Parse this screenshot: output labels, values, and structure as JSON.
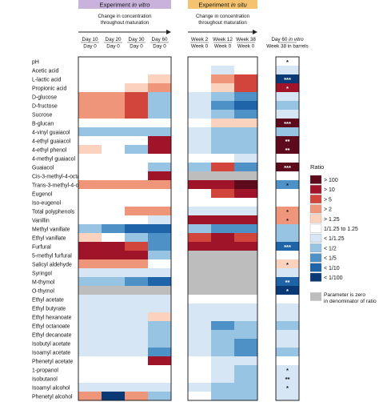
{
  "chart_data": {
    "type": "heatmap",
    "title": "",
    "colorbar_title": "Ratio",
    "legend_placement": "right",
    "panels": [
      {
        "header": {
          "prefix": "Experiment ",
          "italic": "in vitro",
          "color": "#c9b3dd"
        },
        "arrow_text": [
          {
            "parts": [
              {
                "t": "Change in concentration",
                "i": false
              }
            ]
          },
          {
            "parts": [
              {
                "t": "throughout maturation",
                "i": false
              }
            ]
          }
        ],
        "columns": [
          [
            "Day 10",
            "Day 0"
          ],
          [
            "Day 20",
            "Day 0"
          ],
          [
            "Day 30",
            "Day 0"
          ],
          [
            "Day 60",
            "Day 0"
          ]
        ]
      },
      {
        "header": {
          "prefix": "Experiment ",
          "italic": "in situ",
          "color": "#f5c36f"
        },
        "arrow_text": [
          {
            "parts": [
              {
                "t": "Change in concentration",
                "i": false
              }
            ]
          },
          {
            "parts": [
              {
                "t": "throughout maturation",
                "i": false
              }
            ]
          }
        ],
        "columns": [
          [
            "Week 2",
            "Week 0"
          ],
          [
            "Week 12",
            "Week 0"
          ],
          [
            "Week 38",
            "Week 0"
          ]
        ]
      },
      {
        "header": null,
        "arrow_text": [],
        "columns": [
          [
            {
              "parts": [
                {
                  "t": "Day 60 ",
                  "i": false
                },
                {
                  "t": "in vitro",
                  "i": true
                }
              ]
            },
            {
              "parts": [
                {
                  "t": "Week 38 in barrels",
                  "i": false
                }
              ]
            }
          ]
        ]
      }
    ],
    "rows": [
      "pH",
      "Acetic acid",
      "L-lactic acid",
      "Propionic acid",
      "D-glucose",
      "D-fructose",
      "Sucrose",
      "B-glucan",
      "4-vinyl guaiacol",
      "4-ethyl guaiacol",
      "4-ethyl phenol",
      "4-methyl guaiacol",
      "Guaiacol",
      "Cis-3-methyl-4-octanolide",
      "Trans-3-methyl-4-octanolide",
      "Eugenol",
      "Iso-eugenol",
      "Total polyphenols",
      "Vanillin",
      "Methyl vanillate",
      "Ethyl vanillate",
      "Furfural",
      "5-methyl furfural",
      "Salicyl aldehyde",
      "Syringol",
      "M-thymol",
      "O-thymol",
      "Ethyl acetate",
      "Ethyl butyrate",
      "Ethyl hexanoate",
      "Ethyl octanoate",
      "Ethyl decanoate",
      "Isobutyl acetate",
      "Isoamyl acetate",
      "Phenetyl acetate",
      "1-propanol",
      "Isobutanol",
      "Isoamyl alcohol",
      "Phenetyl alcohol"
    ],
    "categories": [
      {
        "label": "> 100",
        "color": "#5c0a1c"
      },
      {
        "label": "> 10",
        "color": "#a0142a"
      },
      {
        "label": "> 5",
        "color": "#d2453c"
      },
      {
        "label": "> 2",
        "color": "#ef967a"
      },
      {
        "label": "> 1.25",
        "color": "#fbd2be"
      },
      {
        "label": "1/1.25 to 1.25",
        "color": "#ffffff"
      },
      {
        "label": "< 1/1.25",
        "color": "#d6e6f4"
      },
      {
        "label": "< 1/2",
        "color": "#98c4e4"
      },
      {
        "label": "< 1/5",
        "color": "#4d91c6"
      },
      {
        "label": "< 1/10",
        "color": "#1f63a8"
      },
      {
        "label": "< 1/100",
        "color": "#093a76"
      }
    ],
    "na_label": "Parameter is zero in denominator of ratio",
    "na_color": "#bdbdbd",
    "values": [
      [
        0,
        0,
        0,
        0,
        0,
        0,
        0,
        0
      ],
      [
        0,
        0,
        0,
        0,
        0,
        -1,
        0,
        -1
      ],
      [
        0,
        0,
        0,
        1,
        0,
        2,
        3,
        -5
      ],
      [
        0,
        0,
        1,
        2,
        0,
        1,
        3,
        4
      ],
      [
        2,
        2,
        3,
        -2,
        -1,
        -2,
        -3,
        -1
      ],
      [
        2,
        2,
        3,
        -2,
        -1,
        -3,
        -4,
        -2
      ],
      [
        2,
        2,
        3,
        -2,
        -1,
        -2,
        -3,
        -1
      ],
      [
        0,
        0,
        0,
        0,
        0,
        1,
        1,
        5
      ],
      [
        -2,
        -2,
        -2,
        -2,
        -1,
        -2,
        -2,
        -2
      ],
      [
        0,
        0,
        0,
        4,
        -1,
        -2,
        -2,
        5
      ],
      [
        1,
        0,
        -2,
        4,
        -1,
        -2,
        -2,
        5
      ],
      [
        0,
        0,
        0,
        0,
        0,
        0,
        -1,
        0
      ],
      [
        0,
        0,
        0,
        -2,
        -2,
        3,
        -3,
        5
      ],
      [
        0,
        0,
        0,
        4,
        99,
        99,
        99,
        0
      ],
      [
        2,
        2,
        2,
        2,
        4,
        4,
        5,
        -3
      ],
      [
        0,
        0,
        0,
        0,
        0,
        3,
        4,
        0
      ],
      [
        0,
        0,
        0,
        0,
        0,
        0,
        0,
        0
      ],
      [
        0,
        0,
        2,
        2,
        -1,
        -1,
        -1,
        2
      ],
      [
        0,
        0,
        0,
        -1,
        4,
        4,
        4,
        2
      ],
      [
        -2,
        -3,
        -4,
        -4,
        -2,
        -3,
        -3,
        -2
      ],
      [
        1,
        0,
        -2,
        -3,
        3,
        4,
        3,
        -2
      ],
      [
        4,
        4,
        3,
        -3,
        4,
        4,
        4,
        -4
      ],
      [
        4,
        4,
        4,
        -2,
        99,
        99,
        99,
        0
      ],
      [
        2,
        2,
        2,
        0,
        99,
        99,
        99,
        1
      ],
      [
        -1,
        -1,
        -1,
        -1,
        99,
        99,
        99,
        -1
      ],
      [
        -2,
        -2,
        -3,
        -4,
        99,
        99,
        99,
        -4
      ],
      [
        99,
        99,
        99,
        99,
        99,
        99,
        99,
        -5
      ],
      [
        -1,
        -1,
        -1,
        -1,
        0,
        0,
        0,
        0
      ],
      [
        -1,
        -1,
        -1,
        -1,
        -1,
        -1,
        -1,
        -1
      ],
      [
        -1,
        -1,
        -1,
        1,
        -1,
        -1,
        -1,
        -1
      ],
      [
        -1,
        -1,
        -1,
        -2,
        -1,
        -3,
        -2,
        -2
      ],
      [
        -1,
        -1,
        -1,
        -2,
        -1,
        -2,
        -2,
        -1
      ],
      [
        -1,
        -1,
        -1,
        -2,
        -1,
        -2,
        -3,
        -1
      ],
      [
        -1,
        -1,
        -1,
        -3,
        -1,
        -2,
        -3,
        -2
      ],
      [
        0,
        0,
        0,
        4,
        0,
        -1,
        -1,
        0
      ],
      [
        0,
        0,
        0,
        0,
        0,
        -1,
        -2,
        -1
      ],
      [
        0,
        0,
        0,
        0,
        0,
        -1,
        -2,
        -1
      ],
      [
        -1,
        -1,
        -1,
        -1,
        -1,
        -2,
        -2,
        -1
      ],
      [
        2,
        -5,
        2,
        -2,
        0,
        -2,
        -2,
        -1
      ]
    ],
    "significance": [
      {
        "row": 0,
        "col": 7,
        "text": "*"
      },
      {
        "row": 2,
        "col": 7,
        "text": "***"
      },
      {
        "row": 3,
        "col": 7,
        "text": "*"
      },
      {
        "row": 7,
        "col": 7,
        "text": "***"
      },
      {
        "row": 9,
        "col": 7,
        "text": "**"
      },
      {
        "row": 10,
        "col": 7,
        "text": "**"
      },
      {
        "row": 12,
        "col": 7,
        "text": "***"
      },
      {
        "row": 14,
        "col": 7,
        "text": "*"
      },
      {
        "row": 17,
        "col": 7,
        "text": "*"
      },
      {
        "row": 18,
        "col": 7,
        "text": "*"
      },
      {
        "row": 21,
        "col": 7,
        "text": "***"
      },
      {
        "row": 23,
        "col": 7,
        "text": "*"
      },
      {
        "row": 25,
        "col": 7,
        "text": "**"
      },
      {
        "row": 26,
        "col": 7,
        "text": "*"
      },
      {
        "row": 35,
        "col": 7,
        "text": "*"
      },
      {
        "row": 36,
        "col": 7,
        "text": "**"
      },
      {
        "row": 37,
        "col": 7,
        "text": "*"
      }
    ]
  }
}
